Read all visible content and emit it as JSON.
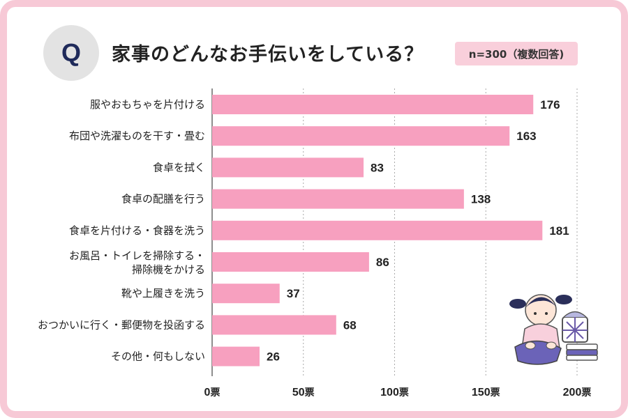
{
  "header": {
    "q_label": "Q",
    "title": "家事のどんなお手伝いをしている？",
    "sample_note": "n=300（複数回答)"
  },
  "chart_data": {
    "type": "bar",
    "orientation": "horizontal",
    "title": "家事のどんなお手伝いをしている？",
    "categories": [
      "服やおもちゃを片付ける",
      "布団や洗濯ものを干す・畳む",
      "食卓を拭く",
      "食卓の配膳を行う",
      "食卓を片付ける・食器を洗う",
      "お風呂・トイレを掃除する・\n掃除機をかける",
      "靴や上履きを洗う",
      "おつかいに行く・郵便物を投函する",
      "その他・何もしない"
    ],
    "values": [
      176,
      163,
      83,
      138,
      181,
      86,
      37,
      68,
      26
    ],
    "xlim": [
      0,
      200
    ],
    "ticks": [
      0,
      50,
      100,
      150,
      200
    ],
    "tick_unit": "票",
    "grid": true,
    "xlabel": "",
    "ylabel": ""
  },
  "colors": {
    "bar": "#f7a0bf",
    "frame": "#f7c9d6",
    "grid": "#a9a9a9",
    "axis": "#444444",
    "badge": "#f9cfdb",
    "q_circle": "#e3e3e3",
    "q_text": "#1f2a5a"
  },
  "illustration": {
    "icon": "girl-folding-laundry-illustration"
  }
}
